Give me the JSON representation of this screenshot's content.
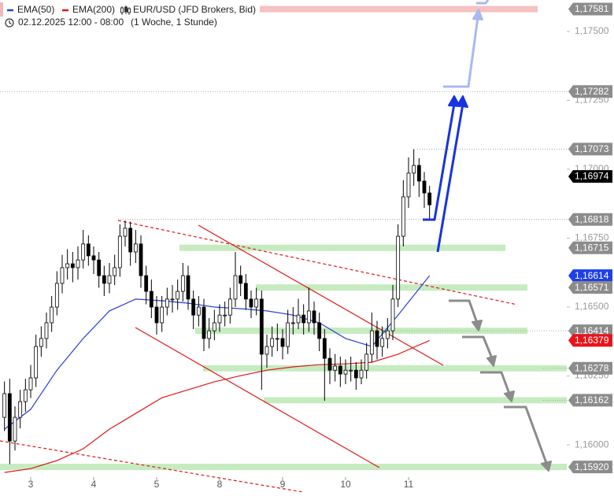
{
  "chart_data": {
    "type": "candlestick",
    "title": "EUR/USD (JFD Brokers, Bid)",
    "subtitle": "02.12.2025 12:00 - 08:00",
    "period": "(1 Woche, 1 Stunde)",
    "xlim": [
      -5.85,
      102.15
    ],
    "xticks": [
      {
        "value": 0,
        "label": "3"
      },
      {
        "value": 12,
        "label": "4"
      },
      {
        "value": 24,
        "label": "5"
      },
      {
        "value": 36,
        "label": "8"
      },
      {
        "value": 48,
        "label": "9"
      },
      {
        "value": 60,
        "label": "10"
      },
      {
        "value": 72,
        "label": "11"
      }
    ],
    "ylim": [
      1.15886,
      1.17614
    ],
    "yticks": [
      {
        "value": 1.16,
        "label": "1,16000"
      },
      {
        "value": 1.1625,
        "label": "1,16250"
      },
      {
        "value": 1.165,
        "label": "1,16500"
      },
      {
        "value": 1.1675,
        "label": "1,16750"
      },
      {
        "value": 1.17,
        "label": "1,17000"
      },
      {
        "value": 1.1725,
        "label": "1,17250"
      },
      {
        "value": 1.175,
        "label": "1,17500"
      }
    ],
    "up_color": "#ffffff",
    "down_color": "#000000",
    "candles": {
      "x": [
        -5,
        -4,
        -3,
        -2,
        -1,
        0,
        1,
        2,
        3,
        4,
        5,
        6,
        7,
        8,
        9,
        10,
        11,
        12,
        13,
        14,
        15,
        16,
        17,
        18,
        19,
        20,
        21,
        22,
        23,
        24,
        25,
        26,
        27,
        28,
        29,
        30,
        31,
        32,
        33,
        34,
        35,
        36,
        37,
        38,
        39,
        40,
        41,
        42,
        43,
        44,
        45,
        46,
        47,
        48,
        49,
        50,
        51,
        52,
        53,
        54,
        55,
        56,
        57,
        58,
        59,
        60,
        61,
        62,
        63,
        64,
        65,
        66,
        67,
        68,
        69,
        70,
        71,
        72,
        73,
        74,
        75,
        76
      ],
      "open": [
        1.161,
        1.16186,
        1.16014,
        1.161,
        1.16157,
        1.162,
        1.16243,
        1.16357,
        1.16386,
        1.16443,
        1.165,
        1.16586,
        1.16643,
        1.16657,
        1.16643,
        1.16671,
        1.16729,
        1.16686,
        1.16671,
        1.16614,
        1.16586,
        1.16614,
        1.16643,
        1.16757,
        1.16786,
        1.167,
        1.16729,
        1.16614,
        1.16557,
        1.165,
        1.16443,
        1.165,
        1.16529,
        1.16529,
        1.16557,
        1.16614,
        1.16529,
        1.16471,
        1.165,
        1.16386,
        1.16414,
        1.16443,
        1.16471,
        1.16471,
        1.16529,
        1.16614,
        1.16586,
        1.16529,
        1.165,
        1.16529,
        1.16329,
        1.16357,
        1.16386,
        1.16386,
        1.16357,
        1.16443,
        1.16443,
        1.16471,
        1.16443,
        1.16486,
        1.16443,
        1.16386,
        1.16314,
        1.16271,
        1.16286,
        1.16257,
        1.16271,
        1.16271,
        1.16243,
        1.16271,
        1.16329,
        1.16414,
        1.16357,
        1.16386,
        1.16414,
        1.16529,
        1.16757,
        1.169,
        1.16986,
        1.17014,
        1.16957,
        1.16914
      ],
      "high": [
        1.1623,
        1.1624,
        1.1614,
        1.162,
        1.1624,
        1.1629,
        1.164,
        1.1643,
        1.1648,
        1.1654,
        1.1663,
        1.1669,
        1.1671,
        1.167,
        1.1672,
        1.1678,
        1.1676,
        1.1672,
        1.167,
        1.1665,
        1.1666,
        1.1669,
        1.168,
        1.16814,
        1.1681,
        1.1678,
        1.1676,
        1.1665,
        1.166,
        1.1654,
        1.1654,
        1.1657,
        1.1658,
        1.166,
        1.1666,
        1.1665,
        1.1656,
        1.1654,
        1.1653,
        1.1646,
        1.1649,
        1.1651,
        1.1652,
        1.1657,
        1.167,
        1.1665,
        1.1662,
        1.1656,
        1.1657,
        1.1656,
        1.164,
        1.1643,
        1.1644,
        1.1642,
        1.1649,
        1.165,
        1.1653,
        1.1651,
        1.16571,
        1.1652,
        1.1648,
        1.1642,
        1.1635,
        1.1633,
        1.1632,
        1.1631,
        1.1632,
        1.163,
        1.1631,
        1.1637,
        1.1648,
        1.1645,
        1.1643,
        1.1646,
        1.1658,
        1.168,
        1.1696,
        1.17043,
        1.17073,
        1.1704,
        1.1699,
        1.1694
      ],
      "low": [
        1.1605,
        1.1593,
        1.1598,
        1.1606,
        1.1612,
        1.1617,
        1.1621,
        1.1632,
        1.1635,
        1.1641,
        1.1647,
        1.1655,
        1.166,
        1.1659,
        1.166,
        1.1664,
        1.1665,
        1.1662,
        1.1657,
        1.1654,
        1.1655,
        1.1658,
        1.1661,
        1.1672,
        1.1665,
        1.1666,
        1.1657,
        1.1651,
        1.1646,
        1.164,
        1.1641,
        1.1647,
        1.1648,
        1.1649,
        1.1652,
        1.1649,
        1.1642,
        1.1643,
        1.1634,
        1.1635,
        1.1638,
        1.1641,
        1.1643,
        1.1644,
        1.165,
        1.1654,
        1.1649,
        1.1646,
        1.1647,
        1.162,
        1.1628,
        1.1632,
        1.1634,
        1.1631,
        1.1633,
        1.164,
        1.1642,
        1.164,
        1.1641,
        1.164,
        1.1634,
        1.1616,
        1.1622,
        1.1623,
        1.1621,
        1.1622,
        1.1623,
        1.162,
        1.1622,
        1.1624,
        1.163,
        1.1631,
        1.1632,
        1.1635,
        1.1638,
        1.165,
        1.1672,
        1.1686,
        1.1694,
        1.169,
        1.1686,
        1.16818
      ],
      "close": [
        1.16186,
        1.16014,
        1.161,
        1.16157,
        1.162,
        1.16243,
        1.16357,
        1.16386,
        1.16443,
        1.165,
        1.16586,
        1.16643,
        1.16657,
        1.16643,
        1.16671,
        1.16729,
        1.16686,
        1.16671,
        1.16614,
        1.16586,
        1.16614,
        1.16643,
        1.16757,
        1.16786,
        1.167,
        1.16729,
        1.16614,
        1.16557,
        1.165,
        1.16443,
        1.165,
        1.16529,
        1.16529,
        1.16557,
        1.16614,
        1.16529,
        1.16471,
        1.165,
        1.16386,
        1.16414,
        1.16443,
        1.16471,
        1.16471,
        1.16529,
        1.16614,
        1.16586,
        1.16529,
        1.165,
        1.16529,
        1.16329,
        1.16357,
        1.16386,
        1.16386,
        1.16357,
        1.16443,
        1.16443,
        1.16471,
        1.16443,
        1.16486,
        1.16443,
        1.16386,
        1.16314,
        1.16271,
        1.16286,
        1.16257,
        1.16271,
        1.16271,
        1.16243,
        1.16271,
        1.16329,
        1.16414,
        1.16357,
        1.16386,
        1.16414,
        1.16529,
        1.16757,
        1.169,
        1.16986,
        1.17014,
        1.16957,
        1.16914,
        1.16871
      ]
    },
    "series": [
      {
        "name": "EMA(50)",
        "color": "#2a3fd8",
        "x": [
          -5,
          0,
          5,
          10,
          15,
          20,
          25,
          30,
          35,
          40,
          45,
          50,
          55,
          60,
          65,
          70,
          76
        ],
        "values": [
          1.16057,
          1.16129,
          1.16271,
          1.16386,
          1.16486,
          1.16529,
          1.16523,
          1.16514,
          1.165,
          1.16494,
          1.16486,
          1.16471,
          1.16443,
          1.16386,
          1.16357,
          1.16471,
          1.16614
        ]
      },
      {
        "name": "EMA(200)",
        "color": "#e01818",
        "x": [
          -5,
          0,
          5,
          10,
          15,
          20,
          25,
          30,
          35,
          40,
          45,
          50,
          55,
          60,
          65,
          70,
          76
        ],
        "values": [
          1.159,
          1.15914,
          1.15943,
          1.15986,
          1.16057,
          1.16114,
          1.16171,
          1.162,
          1.16229,
          1.16251,
          1.16271,
          1.16283,
          1.16291,
          1.16294,
          1.163,
          1.16329,
          1.16379
        ]
      }
    ],
    "levels": [
      {
        "value": 1.17581,
        "label": "1,17581",
        "color": "#8c8c8c"
      },
      {
        "value": 1.17282,
        "label": "1,17282",
        "color": "#8c8c8c"
      },
      {
        "value": 1.17073,
        "label": "1,17073",
        "color": "#8c8c8c"
      },
      {
        "value": 1.16974,
        "label": "1,16974",
        "color": "#000000"
      },
      {
        "value": 1.16818,
        "label": "1,16818",
        "color": "#8c8c8c"
      },
      {
        "value": 1.16715,
        "label": "1,16715",
        "color": "#8c8c8c"
      },
      {
        "value": 1.16614,
        "label": "1,16614",
        "color": "#1f3fe6"
      },
      {
        "value": 1.16571,
        "label": "1,16571",
        "color": "#8c8c8c"
      },
      {
        "value": 1.16414,
        "label": "1,16414",
        "color": "#8c8c8c"
      },
      {
        "value": 1.16379,
        "label": "1,16379",
        "color": "#e8141c"
      },
      {
        "value": 1.16278,
        "label": "1,16278",
        "color": "#8c8c8c"
      },
      {
        "value": 1.16162,
        "label": "1,16162",
        "color": "#8c8c8c"
      },
      {
        "value": 1.1592,
        "label": "1,15920",
        "color": "#8c8c8c"
      }
    ]
  }
}
